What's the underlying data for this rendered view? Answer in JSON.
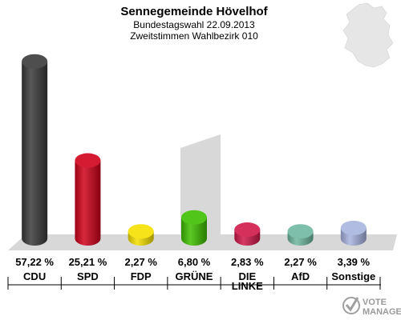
{
  "header": {
    "title": "Sennegemeinde Hövelhof",
    "subtitle1": "Bundestagswahl 22.09.2013",
    "subtitle2": "Zweitstimmen Wahlbezirk 010"
  },
  "watermark": {
    "line1": "VOTE",
    "line2": "MANAGER"
  },
  "chart_data": {
    "type": "bar",
    "title": "Sennegemeinde Hövelhof",
    "subtitle": "Bundestagswahl 22.09.2013 / Zweitstimmen Wahlbezirk 010",
    "unit": "%",
    "ylim": [
      0,
      60
    ],
    "grid": false,
    "legend": "none",
    "categories": [
      "CDU",
      "SPD",
      "FDP",
      "GRÜNE",
      "DIE LINKE",
      "AfD",
      "Sonstige"
    ],
    "labels": [
      [
        "CDU"
      ],
      [
        "SPD"
      ],
      [
        "FDP"
      ],
      [
        "GRÜNE"
      ],
      [
        "DIE",
        "LINKE"
      ],
      [
        "AfD"
      ],
      [
        "Sonstige"
      ]
    ],
    "values": [
      57.22,
      25.21,
      2.27,
      6.8,
      2.83,
      2.27,
      3.39
    ],
    "value_labels": [
      "57,22 %",
      "25,21 %",
      "2,27 %",
      "6,80 %",
      "2,83 %",
      "2,27 %",
      "3,39 %"
    ],
    "colors": [
      "#3a3a3a",
      "#d0021b",
      "#f5e000",
      "#3fbf00",
      "#d0184a",
      "#6fb8a0",
      "#a8b4e0"
    ]
  }
}
